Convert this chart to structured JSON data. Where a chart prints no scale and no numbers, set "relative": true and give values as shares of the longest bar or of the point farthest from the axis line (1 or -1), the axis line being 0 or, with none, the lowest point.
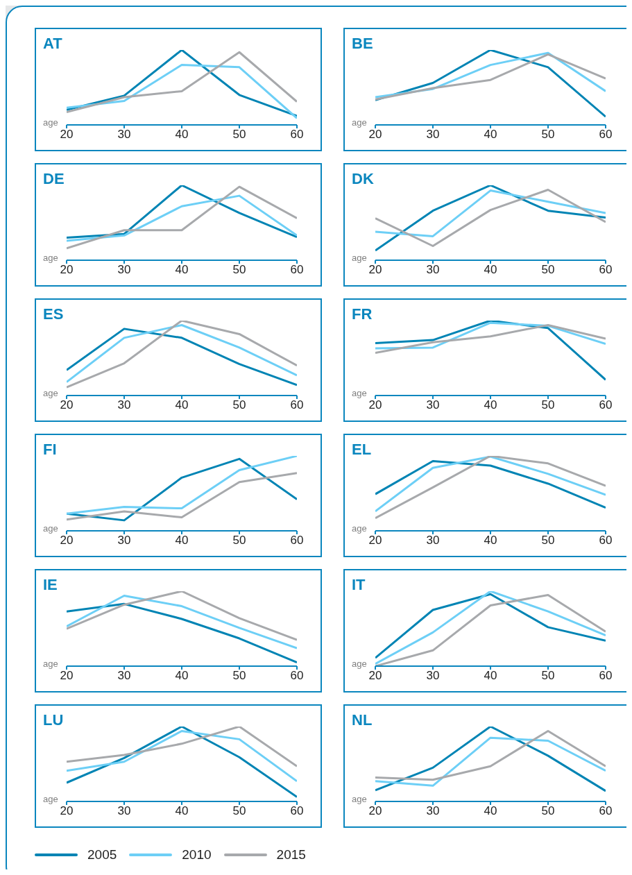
{
  "chart_data": [
    {
      "type": "line",
      "title": "AT",
      "xlabel": "age",
      "legend": "bottom",
      "x": [
        20,
        30,
        40,
        50,
        60
      ],
      "xlim": [
        20,
        60
      ],
      "xticks": [
        20,
        30,
        40,
        50,
        60
      ],
      "relative": true,
      "series": [
        {
          "name": "2005",
          "color": "#0084b4",
          "values": [
            0.2,
            0.39,
            1,
            0.4,
            0.12
          ]
        },
        {
          "name": "2010",
          "color": "#6dcff6",
          "values": [
            0.23,
            0.32,
            0.8,
            0.77,
            0.09
          ]
        },
        {
          "name": "2015",
          "color": "#a7a9ac",
          "values": [
            0.17,
            0.37,
            0.45,
            0.97,
            0.31
          ]
        }
      ]
    },
    {
      "type": "line",
      "title": "BE",
      "xlabel": "age",
      "x": [
        20,
        30,
        40,
        50,
        60
      ],
      "xlim": [
        20,
        60
      ],
      "xticks": [
        20,
        30,
        40,
        50,
        60
      ],
      "relative": true,
      "series": [
        {
          "name": "2005",
          "color": "#0084b4",
          "values": [
            0.33,
            0.56,
            1,
            0.77,
            0.11
          ]
        },
        {
          "name": "2010",
          "color": "#6dcff6",
          "values": [
            0.37,
            0.48,
            0.8,
            0.96,
            0.45
          ]
        },
        {
          "name": "2015",
          "color": "#a7a9ac",
          "values": [
            0.34,
            0.49,
            0.6,
            0.94,
            0.62
          ]
        }
      ]
    },
    {
      "type": "line",
      "title": "DE",
      "xlabel": "age",
      "x": [
        20,
        30,
        40,
        50,
        60
      ],
      "xlim": [
        20,
        60
      ],
      "xticks": [
        20,
        30,
        40,
        50,
        60
      ],
      "relative": true,
      "series": [
        {
          "name": "2005",
          "color": "#0084b4",
          "values": [
            0.3,
            0.35,
            1,
            0.63,
            0.31
          ]
        },
        {
          "name": "2010",
          "color": "#6dcff6",
          "values": [
            0.26,
            0.33,
            0.72,
            0.86,
            0.33
          ]
        },
        {
          "name": "2015",
          "color": "#a7a9ac",
          "values": [
            0.16,
            0.4,
            0.4,
            0.98,
            0.56
          ]
        }
      ]
    },
    {
      "type": "line",
      "title": "DK",
      "xlabel": "age",
      "x": [
        20,
        30,
        40,
        50,
        60
      ],
      "xlim": [
        20,
        60
      ],
      "xticks": [
        20,
        30,
        40,
        50,
        60
      ],
      "relative": true,
      "series": [
        {
          "name": "2005",
          "color": "#0084b4",
          "values": [
            0.13,
            0.66,
            1,
            0.66,
            0.57
          ]
        },
        {
          "name": "2010",
          "color": "#6dcff6",
          "values": [
            0.38,
            0.32,
            0.93,
            0.78,
            0.63
          ]
        },
        {
          "name": "2015",
          "color": "#a7a9ac",
          "values": [
            0.56,
            0.19,
            0.67,
            0.94,
            0.51
          ]
        }
      ]
    },
    {
      "type": "line",
      "title": "ES",
      "xlabel": "age",
      "x": [
        20,
        30,
        40,
        50,
        60
      ],
      "xlim": [
        20,
        60
      ],
      "xticks": [
        20,
        30,
        40,
        50,
        60
      ],
      "relative": true,
      "series": [
        {
          "name": "2005",
          "color": "#0084b4",
          "values": [
            0.34,
            0.89,
            0.77,
            0.42,
            0.14
          ]
        },
        {
          "name": "2010",
          "color": "#6dcff6",
          "values": [
            0.18,
            0.77,
            0.94,
            0.64,
            0.27
          ]
        },
        {
          "name": "2015",
          "color": "#a7a9ac",
          "values": [
            0.11,
            0.43,
            1,
            0.82,
            0.4
          ]
        }
      ]
    },
    {
      "type": "line",
      "title": "FR",
      "xlabel": "age",
      "x": [
        20,
        30,
        40,
        50,
        60
      ],
      "xlim": [
        20,
        60
      ],
      "xticks": [
        20,
        30,
        40,
        50,
        60
      ],
      "relative": true,
      "series": [
        {
          "name": "2005",
          "color": "#0084b4",
          "values": [
            0.7,
            0.74,
            1,
            0.9,
            0.21
          ]
        },
        {
          "name": "2010",
          "color": "#6dcff6",
          "values": [
            0.63,
            0.64,
            0.97,
            0.93,
            0.69
          ]
        },
        {
          "name": "2015",
          "color": "#a7a9ac",
          "values": [
            0.57,
            0.71,
            0.79,
            0.94,
            0.76
          ]
        }
      ]
    },
    {
      "type": "line",
      "title": "FI",
      "xlabel": "age",
      "x": [
        20,
        30,
        40,
        50,
        60
      ],
      "xlim": [
        20,
        60
      ],
      "xticks": [
        20,
        30,
        40,
        50,
        60
      ],
      "relative": true,
      "series": [
        {
          "name": "2005",
          "color": "#0084b4",
          "values": [
            0.23,
            0.14,
            0.71,
            0.96,
            0.42
          ]
        },
        {
          "name": "2010",
          "color": "#6dcff6",
          "values": [
            0.23,
            0.32,
            0.3,
            0.81,
            1
          ]
        },
        {
          "name": "2015",
          "color": "#a7a9ac",
          "values": [
            0.15,
            0.26,
            0.18,
            0.65,
            0.77
          ]
        }
      ]
    },
    {
      "type": "line",
      "title": "EL",
      "xlabel": "age",
      "x": [
        20,
        30,
        40,
        50,
        60
      ],
      "xlim": [
        20,
        60
      ],
      "xticks": [
        20,
        30,
        40,
        50,
        60
      ],
      "relative": true,
      "series": [
        {
          "name": "2005",
          "color": "#0084b4",
          "values": [
            0.49,
            0.93,
            0.87,
            0.63,
            0.31
          ]
        },
        {
          "name": "2010",
          "color": "#6dcff6",
          "values": [
            0.26,
            0.84,
            0.99,
            0.76,
            0.48
          ]
        },
        {
          "name": "2015",
          "color": "#a7a9ac",
          "values": [
            0.17,
            0.58,
            1,
            0.9,
            0.6
          ]
        }
      ]
    },
    {
      "type": "line",
      "title": "IE",
      "xlabel": "age",
      "x": [
        20,
        30,
        40,
        50,
        60
      ],
      "xlim": [
        20,
        60
      ],
      "xticks": [
        20,
        30,
        40,
        50,
        60
      ],
      "relative": true,
      "series": [
        {
          "name": "2005",
          "color": "#0084b4",
          "values": [
            0.73,
            0.83,
            0.63,
            0.37,
            0.05
          ]
        },
        {
          "name": "2010",
          "color": "#6dcff6",
          "values": [
            0.53,
            0.94,
            0.8,
            0.51,
            0.24
          ]
        },
        {
          "name": "2015",
          "color": "#a7a9ac",
          "values": [
            0.5,
            0.82,
            1,
            0.64,
            0.35
          ]
        }
      ]
    },
    {
      "type": "line",
      "title": "IT",
      "xlabel": "age",
      "x": [
        20,
        30,
        40,
        50,
        60
      ],
      "xlim": [
        20,
        60
      ],
      "xticks": [
        20,
        30,
        40,
        50,
        60
      ],
      "relative": true,
      "series": [
        {
          "name": "2005",
          "color": "#0084b4",
          "values": [
            0.11,
            0.75,
            0.96,
            0.52,
            0.34
          ]
        },
        {
          "name": "2010",
          "color": "#6dcff6",
          "values": [
            0.03,
            0.45,
            1,
            0.73,
            0.41
          ]
        },
        {
          "name": "2015",
          "color": "#a7a9ac",
          "values": [
            0,
            0.21,
            0.81,
            0.95,
            0.46
          ]
        }
      ]
    },
    {
      "type": "line",
      "title": "LU",
      "xlabel": "age",
      "x": [
        20,
        30,
        40,
        50,
        60
      ],
      "xlim": [
        20,
        60
      ],
      "xticks": [
        20,
        30,
        40,
        50,
        60
      ],
      "relative": true,
      "series": [
        {
          "name": "2005",
          "color": "#0084b4",
          "values": [
            0.25,
            0.58,
            1,
            0.59,
            0.06
          ]
        },
        {
          "name": "2010",
          "color": "#6dcff6",
          "values": [
            0.41,
            0.53,
            0.94,
            0.83,
            0.27
          ]
        },
        {
          "name": "2015",
          "color": "#a7a9ac",
          "values": [
            0.53,
            0.62,
            0.77,
            1,
            0.47
          ]
        }
      ]
    },
    {
      "type": "line",
      "title": "NL",
      "xlabel": "age",
      "x": [
        20,
        30,
        40,
        50,
        60
      ],
      "xlim": [
        20,
        60
      ],
      "xticks": [
        20,
        30,
        40,
        50,
        60
      ],
      "relative": true,
      "series": [
        {
          "name": "2005",
          "color": "#0084b4",
          "values": [
            0.15,
            0.45,
            1,
            0.61,
            0.14
          ]
        },
        {
          "name": "2010",
          "color": "#6dcff6",
          "values": [
            0.27,
            0.21,
            0.85,
            0.81,
            0.41
          ]
        },
        {
          "name": "2015",
          "color": "#a7a9ac",
          "values": [
            0.32,
            0.29,
            0.47,
            0.94,
            0.47
          ]
        }
      ]
    }
  ]
}
